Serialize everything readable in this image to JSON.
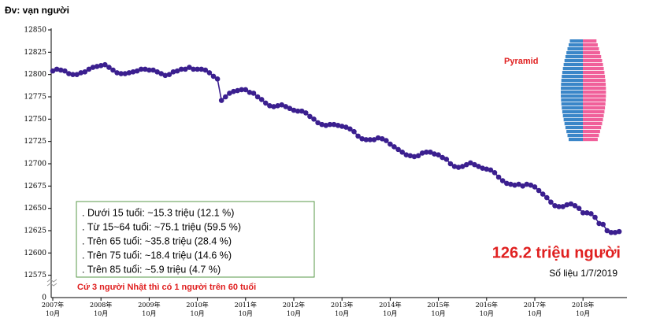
{
  "chart_data": {
    "type": "line",
    "unit_label": "Đv: vạn người",
    "inset_label": "Pyramid",
    "highlight": "126.2 triệu người",
    "caption": "Số liệu 1/7/2019",
    "notes": [
      ". Dưới 15 tuổi: ~15.3 triệu (12.1 %)",
      ". Từ 15~64 tuổi:  ~75.1 triệu (59.5 %)",
      ". Trên 65 tuổi: ~35.8 triệu (28.4 %)",
      ". Trên 75 tuổi: ~18.4 triệu (14.6 %)",
      ". Trên 85 tuổi: ~5.9 triệu (4.7 %)"
    ],
    "remark": "Cứ 3 người Nhật thì có 1 người trên 60 tuổi",
    "categories": [
      "2007年\n10月",
      null,
      null,
      null,
      null,
      null,
      null,
      null,
      null,
      null,
      null,
      null,
      "2008年\n10月",
      null,
      null,
      null,
      null,
      null,
      null,
      null,
      null,
      null,
      null,
      null,
      "2009年\n10月",
      null,
      null,
      null,
      null,
      null,
      null,
      null,
      null,
      null,
      null,
      null,
      "2010年\n10月",
      null,
      null,
      null,
      null,
      null,
      null,
      null,
      null,
      null,
      null,
      null,
      "2011年\n10月",
      null,
      null,
      null,
      null,
      null,
      null,
      null,
      null,
      null,
      null,
      null,
      "2012年\n10月",
      null,
      null,
      null,
      null,
      null,
      null,
      null,
      null,
      null,
      null,
      null,
      "2013年\n10月",
      null,
      null,
      null,
      null,
      null,
      null,
      null,
      null,
      null,
      null,
      null,
      "2014年\n10月",
      null,
      null,
      null,
      null,
      null,
      null,
      null,
      null,
      null,
      null,
      null,
      "2015年\n10月",
      null,
      null,
      null,
      null,
      null,
      null,
      null,
      null,
      null,
      null,
      null,
      "2016年\n10月",
      null,
      null,
      null,
      null,
      null,
      null,
      null,
      null,
      null,
      null,
      null,
      "2017年\n10月",
      null,
      null,
      null,
      null,
      null,
      null,
      null,
      null,
      null,
      null,
      null,
      "2018年\n10月",
      null,
      null,
      null,
      null,
      null,
      null,
      null,
      null,
      null
    ],
    "series": [
      {
        "color": "#3b1f8f",
        "values": [
          12804,
          12806,
          12805,
          12804,
          12801,
          12800,
          12800,
          12802,
          12803,
          12806,
          12808,
          12809,
          12810,
          12811,
          12808,
          12805,
          12802,
          12801,
          12801,
          12802,
          12803,
          12804,
          12806,
          12806,
          12805,
          12805,
          12803,
          12801,
          12799,
          12800,
          12803,
          12804,
          12806,
          12806,
          12808,
          12806,
          12806,
          12806,
          12805,
          12802,
          12798,
          12795,
          12771,
          12775,
          12779,
          12781,
          12782,
          12783,
          12783,
          12780,
          12779,
          12775,
          12772,
          12768,
          12765,
          12764,
          12765,
          12766,
          12764,
          12762,
          12760,
          12759,
          12759,
          12757,
          12753,
          12750,
          12746,
          12744,
          12743,
          12744,
          12744,
          12743,
          12742,
          12741,
          12739,
          12736,
          12731,
          12728,
          12727,
          12727,
          12727,
          12729,
          12728,
          12726,
          12722,
          12719,
          12716,
          12713,
          12710,
          12709,
          12708,
          12709,
          12712,
          12713,
          12713,
          12711,
          12710,
          12707,
          12705,
          12700,
          12697,
          12696,
          12697,
          12699,
          12701,
          12699,
          12697,
          12695,
          12694,
          12693,
          12690,
          12685,
          12681,
          12678,
          12677,
          12676,
          12677,
          12675,
          12677,
          12676,
          12674,
          12670,
          12666,
          12662,
          12657,
          12653,
          12652,
          12652,
          12654,
          12655,
          12653,
          12650,
          12645,
          12645,
          12644,
          12640,
          12633,
          12632,
          12625,
          12623,
          12623,
          12624
        ]
      }
    ],
    "ylim": [
      12550,
      12850
    ],
    "yticks": [
      12575,
      12600,
      12625,
      12650,
      12675,
      12700,
      12725,
      12750,
      12775,
      12800,
      12825,
      12850
    ],
    "ybreak_tick": 0
  }
}
